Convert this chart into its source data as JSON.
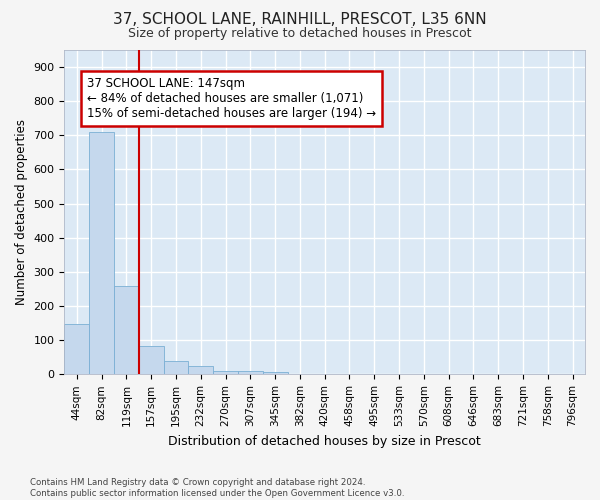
{
  "title": "37, SCHOOL LANE, RAINHILL, PRESCOT, L35 6NN",
  "subtitle": "Size of property relative to detached houses in Prescot",
  "xlabel": "Distribution of detached houses by size in Prescot",
  "ylabel": "Number of detached properties",
  "footnote": "Contains HM Land Registry data © Crown copyright and database right 2024.\nContains public sector information licensed under the Open Government Licence v3.0.",
  "bin_labels": [
    "44sqm",
    "82sqm",
    "119sqm",
    "157sqm",
    "195sqm",
    "232sqm",
    "270sqm",
    "307sqm",
    "345sqm",
    "382sqm",
    "420sqm",
    "458sqm",
    "495sqm",
    "533sqm",
    "570sqm",
    "608sqm",
    "646sqm",
    "683sqm",
    "721sqm",
    "758sqm",
    "796sqm"
  ],
  "bar_values": [
    147,
    710,
    260,
    82,
    38,
    25,
    10,
    10,
    7,
    0,
    0,
    0,
    0,
    0,
    0,
    0,
    0,
    0,
    0,
    0,
    0
  ],
  "bar_color": "#c5d8ed",
  "bar_edge_color": "#7aafd4",
  "vline_x": 3.0,
  "vline_color": "#cc0000",
  "annotation_text": "37 SCHOOL LANE: 147sqm\n← 84% of detached houses are smaller (1,071)\n15% of semi-detached houses are larger (194) →",
  "ann_box_fc": "#ffffff",
  "ann_box_ec": "#cc0000",
  "ylim": [
    0,
    950
  ],
  "yticks": [
    0,
    100,
    200,
    300,
    400,
    500,
    600,
    700,
    800,
    900
  ],
  "background_color": "#dce9f5",
  "grid_color": "#ffffff",
  "fig_bg": "#f5f5f5"
}
